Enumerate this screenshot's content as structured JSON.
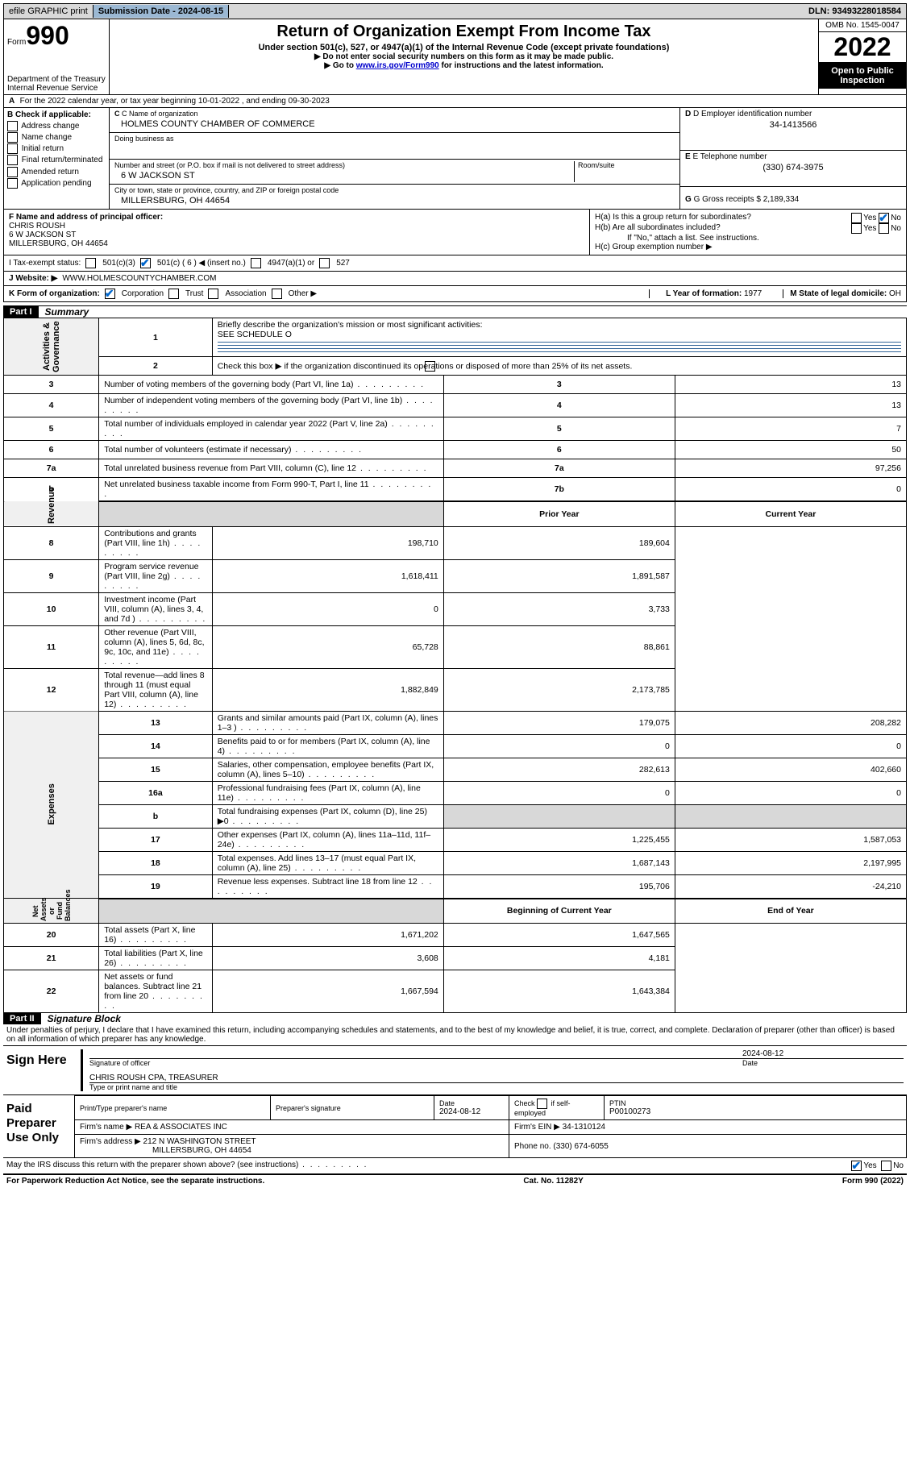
{
  "topbar": {
    "efile": "efile GRAPHIC print",
    "submission": "Submission Date - 2024-08-15",
    "dln": "DLN: 93493228018584"
  },
  "header": {
    "form_label": "Form",
    "form_number": "990",
    "title": "Return of Organization Exempt From Income Tax",
    "sub1": "Under section 501(c), 527, or 4947(a)(1) of the Internal Revenue Code (except private foundations)",
    "sub2": "▶ Do not enter social security numbers on this form as it may be made public.",
    "sub3_pre": "▶ Go to ",
    "sub3_link": "www.irs.gov/Form990",
    "sub3_post": " for instructions and the latest information.",
    "omb": "OMB No. 1545-0047",
    "year": "2022",
    "open": "Open to Public Inspection",
    "dept": "Department of the Treasury",
    "irs": "Internal Revenue Service"
  },
  "lineA": {
    "label": "A",
    "text": "For the 2022 calendar year, or tax year beginning 10-01-2022    , and ending 09-30-2023"
  },
  "boxB": {
    "header": "B Check if applicable:",
    "items": [
      "Address change",
      "Name change",
      "Initial return",
      "Final return/terminated",
      "Amended return",
      "Application pending"
    ]
  },
  "boxC": {
    "name_label": "C Name of organization",
    "name": "HOLMES COUNTY CHAMBER OF COMMERCE",
    "dba_label": "Doing business as",
    "addr_label": "Number and street (or P.O. box if mail is not delivered to street address)",
    "room_label": "Room/suite",
    "addr": "6 W JACKSON ST",
    "city_label": "City or town, state or province, country, and ZIP or foreign postal code",
    "city": "MILLERSBURG, OH  44654"
  },
  "boxD": {
    "label": "D Employer identification number",
    "value": "34-1413566"
  },
  "boxE": {
    "label": "E Telephone number",
    "value": "(330) 674-3975"
  },
  "boxG": {
    "label": "G Gross receipts $",
    "value": "2,189,334"
  },
  "boxF": {
    "label": "F  Name and address of principal officer:",
    "name": "CHRIS ROUSH",
    "addr1": "6 W JACKSON ST",
    "addr2": "MILLERSBURG, OH  44654"
  },
  "boxH": {
    "a": "H(a)  Is this a group return for subordinates?",
    "b": "H(b)  Are all subordinates included?",
    "b_note": "If \"No,\" attach a list. See instructions.",
    "c": "H(c)  Group exemption number ▶"
  },
  "boxI": {
    "label": "I   Tax-exempt status:",
    "opts": [
      "501(c)(3)",
      "501(c) ( 6 ) ◀ (insert no.)",
      "4947(a)(1) or",
      "527"
    ]
  },
  "boxJ": {
    "label": "J   Website: ▶",
    "value": "WWW.HOLMESCOUNTYCHAMBER.COM"
  },
  "boxK": {
    "label": "K Form of organization:",
    "opts": [
      "Corporation",
      "Trust",
      "Association",
      "Other ▶"
    ]
  },
  "boxL": {
    "label": "L Year of formation:",
    "value": "1977"
  },
  "boxM": {
    "label": "M State of legal domicile:",
    "value": "OH"
  },
  "partI": {
    "header": "Part I",
    "title": "Summary",
    "line1": "Briefly describe the organization's mission or most significant activities:",
    "line1_val": "SEE SCHEDULE O",
    "line2": "Check this box ▶       if the organization discontinued its operations or disposed of more than 25% of its net assets.",
    "sections": [
      {
        "side": "Activities & Governance",
        "rows": [
          {
            "n": "3",
            "d": "Number of voting members of the governing body (Part VI, line 1a)",
            "box": "3",
            "v": "13"
          },
          {
            "n": "4",
            "d": "Number of independent voting members of the governing body (Part VI, line 1b)",
            "box": "4",
            "v": "13"
          },
          {
            "n": "5",
            "d": "Total number of individuals employed in calendar year 2022 (Part V, line 2a)",
            "box": "5",
            "v": "7"
          },
          {
            "n": "6",
            "d": "Total number of volunteers (estimate if necessary)",
            "box": "6",
            "v": "50"
          },
          {
            "n": "7a",
            "d": "Total unrelated business revenue from Part VIII, column (C), line 12",
            "box": "7a",
            "v": "97,256"
          },
          {
            "n": "b",
            "d": "Net unrelated business taxable income from Form 990-T, Part I, line 11",
            "box": "7b",
            "v": "0"
          }
        ]
      },
      {
        "side": "Revenue",
        "header": [
          "Prior Year",
          "Current Year"
        ],
        "rows": [
          {
            "n": "8",
            "d": "Contributions and grants (Part VIII, line 1h)",
            "p": "198,710",
            "c": "189,604"
          },
          {
            "n": "9",
            "d": "Program service revenue (Part VIII, line 2g)",
            "p": "1,618,411",
            "c": "1,891,587"
          },
          {
            "n": "10",
            "d": "Investment income (Part VIII, column (A), lines 3, 4, and 7d )",
            "p": "0",
            "c": "3,733"
          },
          {
            "n": "11",
            "d": "Other revenue (Part VIII, column (A), lines 5, 6d, 8c, 9c, 10c, and 11e)",
            "p": "65,728",
            "c": "88,861"
          },
          {
            "n": "12",
            "d": "Total revenue—add lines 8 through 11 (must equal Part VIII, column (A), line 12)",
            "p": "1,882,849",
            "c": "2,173,785"
          }
        ]
      },
      {
        "side": "Expenses",
        "rows": [
          {
            "n": "13",
            "d": "Grants and similar amounts paid (Part IX, column (A), lines 1–3 )",
            "p": "179,075",
            "c": "208,282"
          },
          {
            "n": "14",
            "d": "Benefits paid to or for members (Part IX, column (A), line 4)",
            "p": "0",
            "c": "0"
          },
          {
            "n": "15",
            "d": "Salaries, other compensation, employee benefits (Part IX, column (A), lines 5–10)",
            "p": "282,613",
            "c": "402,660"
          },
          {
            "n": "16a",
            "d": "Professional fundraising fees (Part IX, column (A), line 11e)",
            "p": "0",
            "c": "0"
          },
          {
            "n": "b",
            "d": "Total fundraising expenses (Part IX, column (D), line 25) ▶0",
            "p": "",
            "c": ""
          },
          {
            "n": "17",
            "d": "Other expenses (Part IX, column (A), lines 11a–11d, 11f–24e)",
            "p": "1,225,455",
            "c": "1,587,053"
          },
          {
            "n": "18",
            "d": "Total expenses. Add lines 13–17 (must equal Part IX, column (A), line 25)",
            "p": "1,687,143",
            "c": "2,197,995"
          },
          {
            "n": "19",
            "d": "Revenue less expenses. Subtract line 18 from line 12",
            "p": "195,706",
            "c": "-24,210"
          }
        ]
      },
      {
        "side": "Net Assets or Fund Balances",
        "header": [
          "Beginning of Current Year",
          "End of Year"
        ],
        "rows": [
          {
            "n": "20",
            "d": "Total assets (Part X, line 16)",
            "p": "1,671,202",
            "c": "1,647,565"
          },
          {
            "n": "21",
            "d": "Total liabilities (Part X, line 26)",
            "p": "3,608",
            "c": "4,181"
          },
          {
            "n": "22",
            "d": "Net assets or fund balances. Subtract line 21 from line 20",
            "p": "1,667,594",
            "c": "1,643,384"
          }
        ]
      }
    ]
  },
  "partII": {
    "header": "Part II",
    "title": "Signature Block",
    "declaration": "Under penalties of perjury, I declare that I have examined this return, including accompanying schedules and statements, and to the best of my knowledge and belief, it is true, correct, and complete. Declaration of preparer (other than officer) is based on all information of which preparer has any knowledge."
  },
  "sign": {
    "left": "Sign Here",
    "sig_label": "Signature of officer",
    "date_label": "Date",
    "date": "2024-08-12",
    "name": "CHRIS ROUSH  CPA, TREASURER",
    "name_label": "Type or print name and title"
  },
  "paid": {
    "left": "Paid Preparer Use Only",
    "h1": "Print/Type preparer's name",
    "h2": "Preparer's signature",
    "h3": "Date",
    "h3v": "2024-08-12",
    "h4": "Check         if self-employed",
    "h5": "PTIN",
    "h5v": "P00100273",
    "firm_name_l": "Firm's name    ▶",
    "firm_name": "REA & ASSOCIATES INC",
    "firm_ein_l": "Firm's EIN ▶",
    "firm_ein": "34-1310124",
    "firm_addr_l": "Firm's address ▶",
    "firm_addr1": "212 N WASHINGTON STREET",
    "firm_addr2": "MILLERSBURG, OH  44654",
    "phone_l": "Phone no.",
    "phone": "(330) 674-6055",
    "discuss": "May the IRS discuss this return with the preparer shown above? (see instructions)"
  },
  "footer": {
    "left": "For Paperwork Reduction Act Notice, see the separate instructions.",
    "mid": "Cat. No. 11282Y",
    "right": "Form 990 (2022)"
  }
}
